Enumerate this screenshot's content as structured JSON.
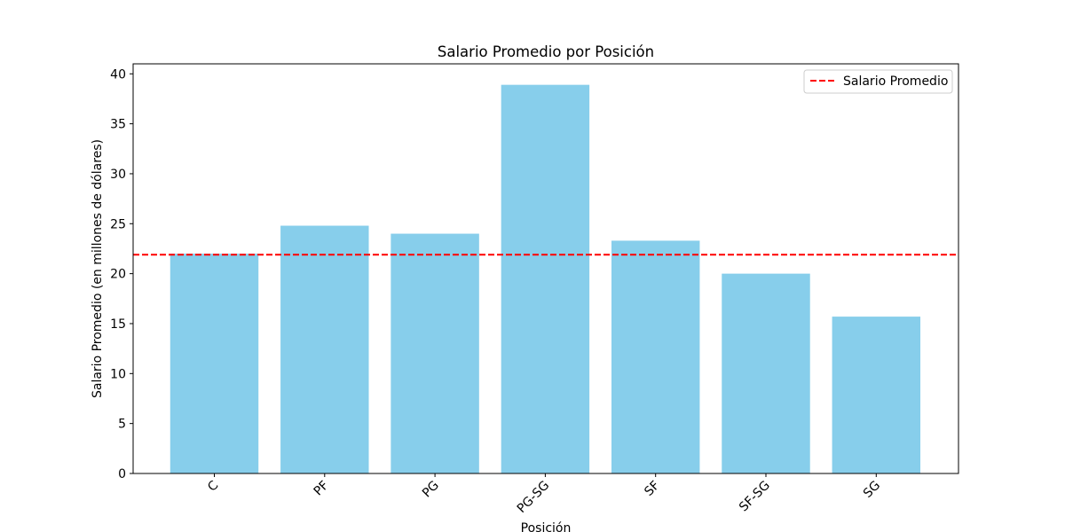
{
  "chart_data": {
    "type": "bar",
    "title": "Salario Promedio por Posición",
    "xlabel": "Posición",
    "ylabel": "Salario Promedio (en millones de dólares)",
    "categories": [
      "C",
      "PF",
      "PG",
      "PG-SG",
      "SF",
      "SF-SG",
      "SG"
    ],
    "values": [
      22.0,
      24.8,
      24.0,
      38.9,
      23.3,
      20.0,
      15.7
    ],
    "ylim": [
      0,
      41
    ],
    "yticks": [
      0,
      5,
      10,
      15,
      20,
      25,
      30,
      35,
      40
    ],
    "bar_color": "#87ceeb",
    "reference_line": {
      "label": "Salario Promedio",
      "value": 21.9,
      "color": "#ff0000",
      "style": "dashed"
    },
    "legend": {
      "position": "upper-right",
      "entries": [
        "Salario Promedio"
      ]
    },
    "grid": false,
    "xtick_rotation": "45"
  }
}
